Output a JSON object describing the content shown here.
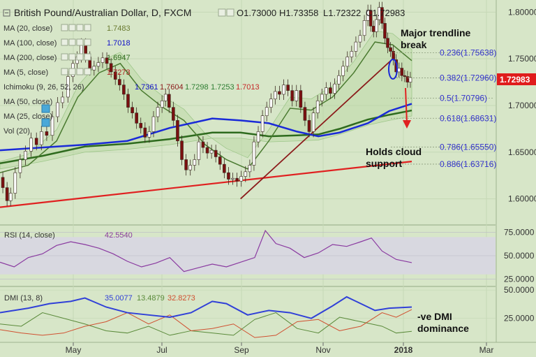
{
  "header": {
    "title": "British Pound/Australian Dollar, D, FXCM",
    "o_label": "O",
    "o_value": "1.73000",
    "h_label": "H",
    "h_value": "1.73358",
    "l_label": "L",
    "l_value": "1.72322",
    "c_label": "C",
    "c_value": "1.72983"
  },
  "indicators": [
    {
      "label": "MA (20, close)",
      "value": "1.7483",
      "color": "#6a7a30"
    },
    {
      "label": "MA (100, close)",
      "value": "1.7018",
      "color": "#1010c8"
    },
    {
      "label": "MA (200, close)",
      "value": "1.6947",
      "color": "#2e6b1e"
    },
    {
      "label": "MA (5, close)",
      "value": "1.7273",
      "color": "#b02020"
    },
    {
      "label": "Ichimoku (9, 26, 52, 26)",
      "values": [
        "1.7361",
        "1.7604",
        "1.7298",
        "1.7253",
        "1.7013"
      ],
      "colors": [
        "#1010c8",
        "#8b1a1a",
        "#2e7d32",
        "#2e7d32",
        "#c62828"
      ]
    },
    {
      "label": "MA (50, close)",
      "value": ""
    },
    {
      "label": "MA (25, close)",
      "value": ""
    },
    {
      "label": "Vol (20)",
      "value": ""
    }
  ],
  "annotations": {
    "trendline_break": "Major trendline break",
    "cloud_support": "Holds cloud support",
    "dmi": "-ve DMI dominance"
  },
  "price_label": "1.72983",
  "colors": {
    "background": "#d7e6c8",
    "up_candle": "#ffffff",
    "down_candle": "#7a1010",
    "ma100": "#1a2ad8",
    "ma200": "#2e6b1e",
    "trendline_support": "#e02020",
    "trendline_major": "#8b1a1a",
    "fib": "#3333cc",
    "price_tag": "#e01c1c",
    "rsi": "#8a3aa0",
    "dmi_adx": "#3040d8",
    "dmi_plus": "#5a8a3a",
    "dmi_minus": "#d05030"
  },
  "chart_data": {
    "type": "candlestick",
    "symbol": "GBP/AUD",
    "timeframe": "D",
    "ylim": [
      1.575,
      1.81
    ],
    "price_ticks": [
      "1.80000",
      "1.75000",
      "1.70000",
      "1.65000",
      "1.60000"
    ],
    "x_ticks": [
      "May",
      "Jul",
      "Sep",
      "Nov",
      "2018",
      "Mar"
    ],
    "fib_levels": [
      {
        "label": "0.236(1.75638)",
        "value": 1.75638
      },
      {
        "label": "0.382(1.72960)",
        "value": 1.7296
      },
      {
        "label": "0.5(1.70796)",
        "value": 1.70796
      },
      {
        "label": "0.618(1.68631)",
        "value": 1.68631
      },
      {
        "label": "0.786(1.65550)",
        "value": 1.6555
      },
      {
        "label": "0.886(1.63716)",
        "value": 1.63716
      }
    ],
    "close_path": [
      [
        0,
        1.623
      ],
      [
        8,
        1.612
      ],
      [
        12,
        1.598
      ],
      [
        18,
        1.606
      ],
      [
        25,
        1.628
      ],
      [
        32,
        1.642
      ],
      [
        40,
        1.651
      ],
      [
        48,
        1.665
      ],
      [
        55,
        1.658
      ],
      [
        62,
        1.672
      ],
      [
        70,
        1.668
      ],
      [
        78,
        1.688
      ],
      [
        85,
        1.703
      ],
      [
        92,
        1.709
      ],
      [
        100,
        1.731
      ],
      [
        106,
        1.745
      ],
      [
        112,
        1.752
      ],
      [
        118,
        1.766
      ],
      [
        124,
        1.752
      ],
      [
        130,
        1.738
      ],
      [
        136,
        1.742
      ],
      [
        142,
        1.746
      ],
      [
        148,
        1.751
      ],
      [
        154,
        1.745
      ],
      [
        160,
        1.736
      ],
      [
        166,
        1.728
      ],
      [
        172,
        1.722
      ],
      [
        178,
        1.712
      ],
      [
        184,
        1.698
      ],
      [
        190,
        1.692
      ],
      [
        196,
        1.681
      ],
      [
        202,
        1.676
      ],
      [
        208,
        1.666
      ],
      [
        214,
        1.672
      ],
      [
        220,
        1.688
      ],
      [
        226,
        1.698
      ],
      [
        232,
        1.705
      ],
      [
        236,
        1.712
      ],
      [
        242,
        1.698
      ],
      [
        248,
        1.684
      ],
      [
        254,
        1.662
      ],
      [
        260,
        1.642
      ],
      [
        266,
        1.631
      ],
      [
        272,
        1.636
      ],
      [
        278,
        1.642
      ],
      [
        284,
        1.661
      ],
      [
        290,
        1.655
      ],
      [
        296,
        1.649
      ],
      [
        302,
        1.652
      ],
      [
        308,
        1.645
      ],
      [
        314,
        1.637
      ],
      [
        320,
        1.628
      ],
      [
        326,
        1.621
      ],
      [
        332,
        1.622
      ],
      [
        338,
        1.619
      ],
      [
        344,
        1.624
      ],
      [
        350,
        1.629
      ],
      [
        356,
        1.636
      ],
      [
        362,
        1.661
      ],
      [
        368,
        1.672
      ],
      [
        374,
        1.689
      ],
      [
        380,
        1.698
      ],
      [
        386,
        1.707
      ],
      [
        392,
        1.715
      ],
      [
        398,
        1.712
      ],
      [
        404,
        1.722
      ],
      [
        410,
        1.716
      ],
      [
        416,
        1.705
      ],
      [
        422,
        1.716
      ],
      [
        428,
        1.698
      ],
      [
        434,
        1.684
      ],
      [
        440,
        1.672
      ],
      [
        446,
        1.692
      ],
      [
        452,
        1.705
      ],
      [
        458,
        1.712
      ],
      [
        464,
        1.719
      ],
      [
        470,
        1.713
      ],
      [
        476,
        1.723
      ],
      [
        482,
        1.732
      ],
      [
        488,
        1.742
      ],
      [
        494,
        1.752
      ],
      [
        500,
        1.758
      ],
      [
        506,
        1.768
      ],
      [
        512,
        1.775
      ],
      [
        518,
        1.791
      ],
      [
        522,
        1.802
      ],
      [
        526,
        1.785
      ],
      [
        530,
        1.779
      ],
      [
        534,
        1.792
      ],
      [
        538,
        1.805
      ],
      [
        542,
        1.788
      ],
      [
        546,
        1.772
      ],
      [
        550,
        1.762
      ],
      [
        554,
        1.758
      ],
      [
        558,
        1.749
      ],
      [
        562,
        1.736
      ],
      [
        566,
        1.74
      ],
      [
        570,
        1.732
      ],
      [
        574,
        1.731
      ],
      [
        578,
        1.725
      ],
      [
        582,
        1.73
      ]
    ],
    "ma100_path": [
      [
        0,
        1.652
      ],
      [
        60,
        1.655
      ],
      [
        120,
        1.658
      ],
      [
        180,
        1.662
      ],
      [
        240,
        1.676
      ],
      [
        300,
        1.686
      ],
      [
        340,
        1.684
      ],
      [
        380,
        1.681
      ],
      [
        420,
        1.672
      ],
      [
        450,
        1.667
      ],
      [
        480,
        1.671
      ],
      [
        520,
        1.681
      ],
      [
        550,
        1.694
      ],
      [
        582,
        1.7018
      ]
    ],
    "ma200_path": [
      [
        0,
        1.638
      ],
      [
        60,
        1.646
      ],
      [
        120,
        1.656
      ],
      [
        180,
        1.659
      ],
      [
        240,
        1.664
      ],
      [
        300,
        1.671
      ],
      [
        340,
        1.671
      ],
      [
        380,
        1.667
      ],
      [
        420,
        1.668
      ],
      [
        450,
        1.669
      ],
      [
        480,
        1.675
      ],
      [
        520,
        1.685
      ],
      [
        550,
        1.69
      ],
      [
        582,
        1.6947
      ]
    ],
    "ma20_path": [
      [
        0,
        1.628
      ],
      [
        40,
        1.636
      ],
      [
        80,
        1.662
      ],
      [
        110,
        1.709
      ],
      [
        140,
        1.735
      ],
      [
        170,
        1.745
      ],
      [
        200,
        1.716
      ],
      [
        230,
        1.698
      ],
      [
        260,
        1.684
      ],
      [
        290,
        1.658
      ],
      [
        320,
        1.642
      ],
      [
        350,
        1.632
      ],
      [
        380,
        1.662
      ],
      [
        410,
        1.697
      ],
      [
        440,
        1.695
      ],
      [
        470,
        1.709
      ],
      [
        500,
        1.735
      ],
      [
        530,
        1.768
      ],
      [
        555,
        1.765
      ],
      [
        582,
        1.748
      ]
    ],
    "rsi": {
      "label": "RSI (14, close)",
      "value": "42.5540",
      "ticks": [
        "75.0000",
        "50.0000",
        "25.0000"
      ],
      "band": [
        30,
        70
      ],
      "path": [
        [
          0,
          43
        ],
        [
          20,
          38
        ],
        [
          40,
          48
        ],
        [
          60,
          52
        ],
        [
          80,
          61
        ],
        [
          100,
          65
        ],
        [
          120,
          62
        ],
        [
          140,
          58
        ],
        [
          160,
          52
        ],
        [
          180,
          44
        ],
        [
          200,
          38
        ],
        [
          220,
          42
        ],
        [
          240,
          48
        ],
        [
          260,
          33
        ],
        [
          280,
          37
        ],
        [
          300,
          41
        ],
        [
          320,
          38
        ],
        [
          340,
          43
        ],
        [
          360,
          48
        ],
        [
          375,
          77
        ],
        [
          390,
          63
        ],
        [
          410,
          58
        ],
        [
          430,
          48
        ],
        [
          450,
          53
        ],
        [
          470,
          62
        ],
        [
          490,
          60
        ],
        [
          510,
          65
        ],
        [
          525,
          69
        ],
        [
          540,
          55
        ],
        [
          560,
          46
        ],
        [
          582,
          42.55
        ]
      ]
    },
    "dmi": {
      "label": "DMI (13, 8)",
      "values": [
        "35.0077",
        "13.4879",
        "32.8273"
      ],
      "ticks": [
        "50.0000",
        "25.0000"
      ],
      "adx": [
        [
          0,
          30
        ],
        [
          40,
          34
        ],
        [
          70,
          38
        ],
        [
          100,
          40
        ],
        [
          120,
          43
        ],
        [
          150,
          35
        ],
        [
          180,
          30
        ],
        [
          210,
          28
        ],
        [
          240,
          26
        ],
        [
          270,
          30
        ],
        [
          300,
          40
        ],
        [
          320,
          38
        ],
        [
          350,
          28
        ],
        [
          380,
          32
        ],
        [
          410,
          30
        ],
        [
          440,
          25
        ],
        [
          470,
          36
        ],
        [
          490,
          44
        ],
        [
          510,
          38
        ],
        [
          530,
          32
        ],
        [
          550,
          34
        ],
        [
          582,
          35
        ]
      ],
      "di_plus": [
        [
          0,
          20
        ],
        [
          30,
          18
        ],
        [
          60,
          30
        ],
        [
          90,
          25
        ],
        [
          120,
          20
        ],
        [
          150,
          14
        ],
        [
          180,
          12
        ],
        [
          210,
          18
        ],
        [
          240,
          10
        ],
        [
          270,
          14
        ],
        [
          300,
          12
        ],
        [
          330,
          10
        ],
        [
          360,
          24
        ],
        [
          390,
          30
        ],
        [
          420,
          16
        ],
        [
          450,
          12
        ],
        [
          480,
          26
        ],
        [
          510,
          22
        ],
        [
          540,
          18
        ],
        [
          560,
          12
        ],
        [
          582,
          13.5
        ]
      ],
      "di_minus": [
        [
          0,
          15
        ],
        [
          30,
          12
        ],
        [
          60,
          10
        ],
        [
          90,
          12
        ],
        [
          120,
          18
        ],
        [
          150,
          22
        ],
        [
          180,
          30
        ],
        [
          210,
          20
        ],
        [
          240,
          28
        ],
        [
          270,
          14
        ],
        [
          300,
          16
        ],
        [
          330,
          20
        ],
        [
          360,
          8
        ],
        [
          390,
          10
        ],
        [
          420,
          22
        ],
        [
          450,
          24
        ],
        [
          480,
          14
        ],
        [
          510,
          18
        ],
        [
          540,
          30
        ],
        [
          560,
          26
        ],
        [
          582,
          32.8
        ]
      ]
    }
  }
}
